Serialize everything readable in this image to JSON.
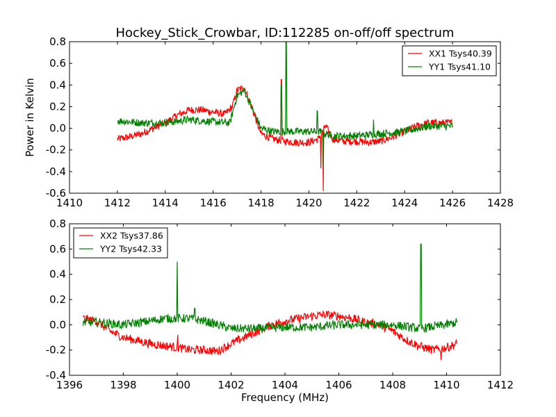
{
  "chart_data": [
    {
      "type": "line",
      "title": "Hockey_Stick_Crowbar, ID:112285 on-off/off spectrum",
      "xlabel": "",
      "ylabel": "Power in Kelvin",
      "xlim": [
        1410,
        1428
      ],
      "ylim": [
        -0.6,
        0.8
      ],
      "xticks": [
        1410,
        1412,
        1414,
        1416,
        1418,
        1420,
        1422,
        1424,
        1426,
        1428
      ],
      "yticks": [
        -0.6,
        -0.4,
        -0.2,
        0.0,
        0.2,
        0.4,
        0.6,
        0.8
      ],
      "legend": "top-right",
      "series": [
        {
          "name": "XX1 Tsys40.39",
          "color": "#ff0000",
          "x": [
            1412,
            1412.5,
            1413,
            1413.5,
            1414,
            1414.5,
            1415,
            1415.5,
            1416,
            1416.5,
            1416.8,
            1417,
            1417.3,
            1417.6,
            1418,
            1418.5,
            1419,
            1419.5,
            1420,
            1420.4,
            1420.7,
            1421,
            1421.5,
            1422,
            1422.5,
            1423,
            1423.5,
            1424,
            1424.5,
            1425,
            1425.5,
            1426
          ],
          "y": [
            -0.1,
            -0.08,
            -0.05,
            0,
            0.05,
            0.12,
            0.17,
            0.17,
            0.15,
            0.13,
            0.2,
            0.35,
            0.38,
            0.2,
            -0.05,
            -0.1,
            -0.12,
            -0.13,
            -0.13,
            -0.1,
            0.02,
            -0.1,
            -0.12,
            -0.12,
            -0.13,
            -0.12,
            -0.08,
            -0.03,
            0.02,
            0.05,
            0.05,
            0.05
          ],
          "spikes": [
            {
              "x": 1418.85,
              "y": 0.45
            },
            {
              "x": 1420.5,
              "y": -0.37
            },
            {
              "x": 1420.6,
              "y": -0.58
            }
          ]
        },
        {
          "name": "YY1 Tsys41.10",
          "color": "#008000",
          "x": [
            1412,
            1413,
            1414,
            1415,
            1416,
            1416.7,
            1417,
            1417.3,
            1417.6,
            1418,
            1418.5,
            1419.5,
            1420,
            1420.4,
            1421,
            1422,
            1423,
            1424,
            1425,
            1426
          ],
          "y": [
            0.07,
            0.05,
            0.05,
            0.08,
            0.06,
            0.05,
            0.3,
            0.35,
            0.2,
            0.0,
            -0.03,
            -0.03,
            -0.03,
            -0.03,
            -0.07,
            -0.07,
            -0.05,
            -0.03,
            0.02,
            0.02
          ],
          "spikes": [
            {
              "x": 1418.85,
              "y": 0.4
            },
            {
              "x": 1419.05,
              "y": 0.8
            },
            {
              "x": 1420.35,
              "y": 0.16
            },
            {
              "x": 1420.6,
              "y": -0.35
            },
            {
              "x": 1422.7,
              "y": 0.08
            }
          ]
        }
      ]
    },
    {
      "type": "line",
      "title": "",
      "xlabel": "Frequency (MHz)",
      "ylabel": "",
      "xlim": [
        1396,
        1412
      ],
      "ylim": [
        -0.4,
        0.8
      ],
      "xticks": [
        1396,
        1398,
        1400,
        1402,
        1404,
        1406,
        1408,
        1410,
        1412
      ],
      "yticks": [
        -0.4,
        -0.2,
        0.0,
        0.2,
        0.4,
        0.6,
        0.8
      ],
      "legend": "top-left",
      "series": [
        {
          "name": "XX2 Tsys37.86",
          "color": "#ff0000",
          "x": [
            1396.5,
            1397,
            1397.5,
            1398,
            1399,
            1400,
            1400.5,
            1401,
            1401.5,
            1402,
            1402.5,
            1403,
            1403.5,
            1404,
            1404.5,
            1405,
            1405.5,
            1406,
            1406.5,
            1407,
            1407.5,
            1408,
            1408.5,
            1409,
            1409.5,
            1410,
            1410.4
          ],
          "y": [
            0.05,
            0.03,
            -0.05,
            -0.1,
            -0.15,
            -0.18,
            -0.2,
            -0.2,
            -0.21,
            -0.15,
            -0.1,
            -0.05,
            0,
            0.03,
            0.05,
            0.07,
            0.08,
            0.07,
            0.05,
            0.02,
            0,
            -0.05,
            -0.12,
            -0.17,
            -0.2,
            -0.18,
            -0.15
          ],
          "spikes": [
            {
              "x": 1400.02,
              "y": -0.08
            },
            {
              "x": 1409.8,
              "y": -0.28
            }
          ]
        },
        {
          "name": "YY2 Tsys42.33",
          "color": "#008000",
          "x": [
            1396.5,
            1397,
            1398,
            1399,
            1399.5,
            1400.5,
            1401,
            1402,
            1403,
            1404,
            1405,
            1406,
            1407,
            1408,
            1409,
            1410,
            1410.4
          ],
          "y": [
            0.02,
            0.02,
            0.0,
            0.03,
            0.05,
            0.05,
            0.03,
            -0.03,
            -0.03,
            -0.02,
            -0.02,
            0.0,
            0.0,
            0.0,
            -0.03,
            0.0,
            0.02
          ],
          "spikes": [
            {
              "x": 1400.0,
              "y": 0.5
            },
            {
              "x": 1400.65,
              "y": 0.13
            },
            {
              "x": 1409.05,
              "y": 0.64
            }
          ]
        }
      ]
    }
  ]
}
